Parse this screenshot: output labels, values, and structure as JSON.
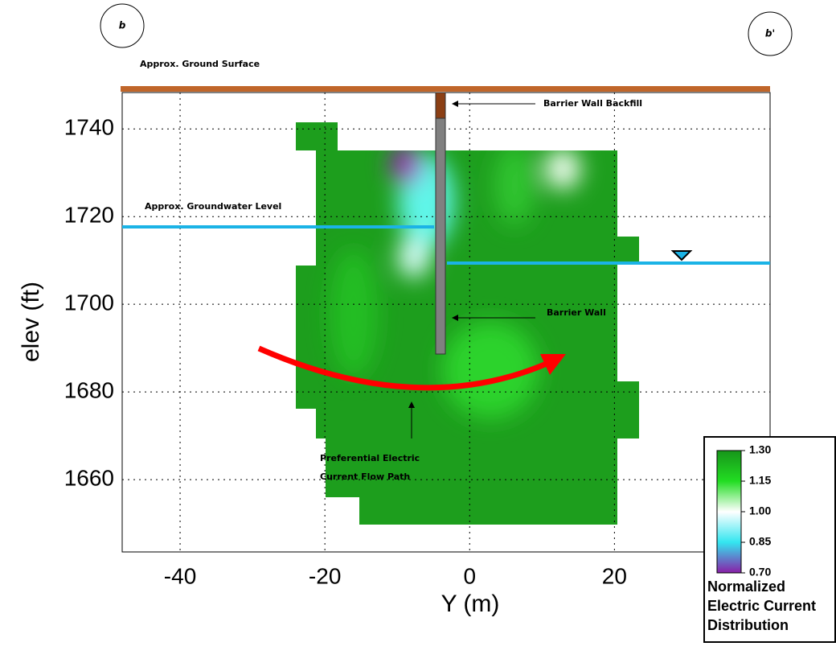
{
  "chart_data": {
    "type": "heatmap",
    "xlabel": "Y (m)",
    "ylabel": "elev (ft)",
    "xlim": [
      -48,
      41.5
    ],
    "ylim": [
      1643.5,
      1748.3
    ],
    "xticks": [
      -40,
      -20,
      0,
      20
    ],
    "yticks": [
      1660,
      1680,
      1700,
      1720,
      1740
    ],
    "grid": true,
    "annotations": {
      "b": "b",
      "b_prime": "b'",
      "ground": "Approx. Ground Surface",
      "backfill": "Barrier Wall Backfill",
      "groundwater": "Approx. Groundwater Level",
      "wall": "Barrier Wall",
      "path_line1": "Preferential Electric",
      "path_line2": "Current Flow Path"
    },
    "colorbar": {
      "title": [
        "Normalized",
        "Electric Current",
        "Distribution"
      ],
      "lim": [
        0.7,
        1.3
      ],
      "ticks": [
        {
          "value": 1.3,
          "label": "1.30"
        },
        {
          "value": 1.15,
          "label": "1.15"
        },
        {
          "value": 1.0,
          "label": "1.00"
        },
        {
          "value": 0.85,
          "label": "0.85"
        },
        {
          "value": 0.7,
          "label": "0.70"
        }
      ],
      "colors": [
        "#8a1fa8",
        "#33e6f0",
        "#ffffff",
        "#22dd22",
        "#17951a"
      ]
    }
  }
}
